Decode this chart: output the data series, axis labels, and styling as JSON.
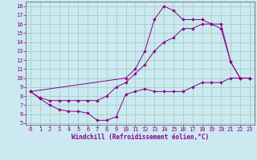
{
  "xlabel": "Windchill (Refroidissement éolien,°C)",
  "bg_color": "#cce8f0",
  "line_color": "#880088",
  "grid_color": "#99ccbb",
  "spine_color": "#666688",
  "xlim": [
    -0.5,
    23.5
  ],
  "ylim": [
    4.8,
    18.5
  ],
  "xticks": [
    0,
    1,
    2,
    3,
    4,
    5,
    6,
    7,
    8,
    9,
    10,
    11,
    12,
    13,
    14,
    15,
    16,
    17,
    18,
    19,
    20,
    21,
    22,
    23
  ],
  "yticks": [
    5,
    6,
    7,
    8,
    9,
    10,
    11,
    12,
    13,
    14,
    15,
    16,
    17,
    18
  ],
  "line1_x": [
    0,
    1,
    2,
    3,
    4,
    5,
    6,
    7,
    8,
    9,
    10,
    11,
    12,
    13,
    14,
    15,
    16,
    17,
    18,
    19,
    20,
    21,
    22,
    23
  ],
  "line1_y": [
    8.5,
    7.7,
    7.0,
    6.5,
    6.3,
    6.3,
    6.1,
    5.3,
    5.3,
    5.7,
    8.2,
    8.5,
    8.8,
    8.5,
    8.5,
    8.5,
    8.5,
    9.0,
    9.5,
    9.5,
    9.5,
    10.0,
    10.0,
    10.0
  ],
  "line2_x": [
    0,
    1,
    2,
    3,
    4,
    5,
    6,
    7,
    8,
    9,
    10,
    11,
    12,
    13,
    14,
    15,
    16,
    17,
    18,
    19,
    20,
    21,
    22,
    23
  ],
  "line2_y": [
    8.5,
    7.8,
    7.5,
    7.5,
    7.5,
    7.5,
    7.5,
    7.5,
    8.0,
    9.0,
    9.5,
    10.5,
    11.5,
    13.0,
    14.0,
    14.5,
    15.5,
    15.5,
    16.0,
    16.0,
    16.0,
    11.8,
    10.0,
    10.0
  ],
  "line3_x": [
    0,
    10,
    11,
    12,
    13,
    14,
    15,
    16,
    17,
    18,
    19,
    20,
    21,
    22,
    23
  ],
  "line3_y": [
    8.5,
    10.0,
    11.0,
    13.0,
    16.5,
    18.0,
    17.5,
    16.5,
    16.5,
    16.5,
    16.0,
    15.5,
    11.8,
    10.0,
    10.0
  ],
  "marker": "D",
  "markersize": 2.2,
  "lw": 0.7,
  "tick_fontsize": 5.0,
  "xlabel_fontsize": 5.5
}
